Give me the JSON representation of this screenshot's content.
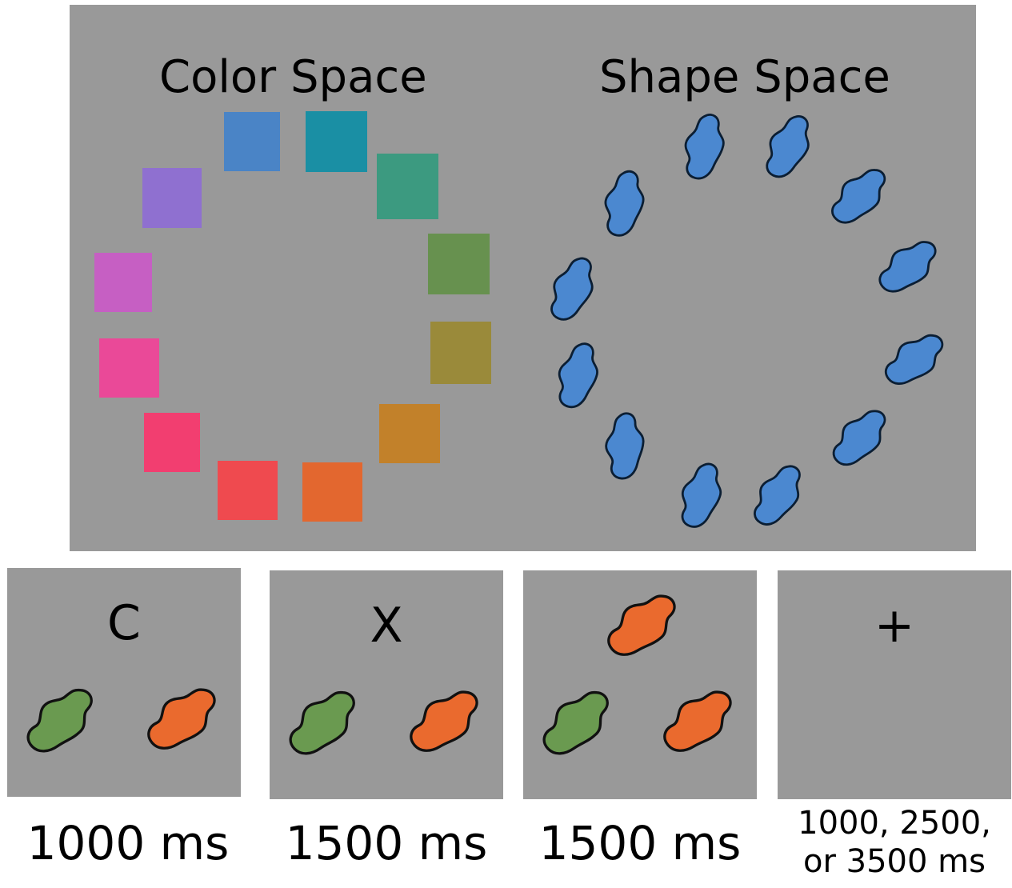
{
  "titles": {
    "color_space": "Color Space",
    "shape_space": "Shape Space"
  },
  "color_swatches": [
    "#4a84c6",
    "#1a8fa4",
    "#3c9a80",
    "#67914f",
    "#9a8a3a",
    "#c2812a",
    "#e3672f",
    "#ef4a4f",
    "#f23e70",
    "#ea4998",
    "#c65fc3",
    "#8f70d0"
  ],
  "shape_fill": "#4b88d0",
  "trials": [
    {
      "cue": "C",
      "duration": "1000 ms"
    },
    {
      "cue": "X",
      "duration": "1500 ms"
    },
    {
      "cue": "",
      "duration": "1500 ms"
    },
    {
      "cue": "+",
      "duration_line1": "1000, 2500,",
      "duration_line2": "or 3500 ms"
    }
  ],
  "trial_colors": {
    "green": "#6a9a50",
    "orange": "#ea6a2e"
  }
}
